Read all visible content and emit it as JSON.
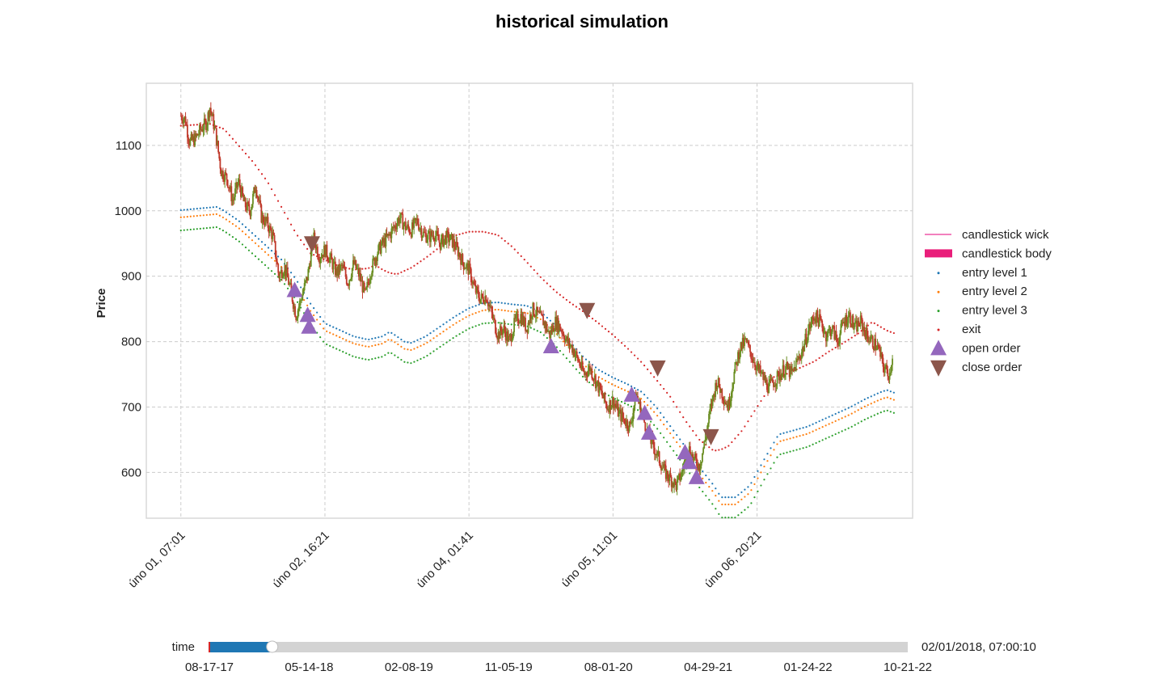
{
  "chart_data": {
    "type": "candlestick",
    "title": "historical simulation",
    "ylabel": "Price",
    "xlabel": "",
    "ylim": [
      530,
      1195
    ],
    "yticks": [
      600,
      700,
      800,
      900,
      1000,
      1100
    ],
    "xticks": [
      {
        "t": 0,
        "label": "úno 01, 07:01"
      },
      {
        "t": 1,
        "label": "úno 02, 16:21"
      },
      {
        "t": 2,
        "label": "úno 04, 01:41"
      },
      {
        "t": 3,
        "label": "úno 05, 11:01"
      },
      {
        "t": 4,
        "label": "úno 06, 20:21"
      }
    ],
    "xlim": [
      -0.24,
      5.08
    ],
    "grid": true,
    "legend_position": "center-right",
    "legend": [
      {
        "key": "wick",
        "label": "candlestick wick",
        "color": "#e6007e"
      },
      {
        "key": "body",
        "label": "candlestick body",
        "color": "#e91e7a"
      },
      {
        "key": "entry1",
        "label": "entry level 1",
        "color": "#1f77b4"
      },
      {
        "key": "entry2",
        "label": "entry level 2",
        "color": "#ff7f0e"
      },
      {
        "key": "entry3",
        "label": "entry level 3",
        "color": "#2ca02c"
      },
      {
        "key": "exit",
        "label": "exit",
        "color": "#d62728"
      },
      {
        "key": "open",
        "label": "open order",
        "color": "#9467bd"
      },
      {
        "key": "close",
        "label": "close order",
        "color": "#8c564b"
      }
    ],
    "candle_colors": {
      "up": "#6b8e23",
      "down": "#c0392b"
    },
    "price": [
      [
        0.0,
        1145
      ],
      [
        0.03,
        1140
      ],
      [
        0.06,
        1105
      ],
      [
        0.1,
        1110
      ],
      [
        0.14,
        1125
      ],
      [
        0.18,
        1135
      ],
      [
        0.2,
        1160
      ],
      [
        0.24,
        1120
      ],
      [
        0.28,
        1060
      ],
      [
        0.32,
        1050
      ],
      [
        0.36,
        1015
      ],
      [
        0.4,
        1045
      ],
      [
        0.44,
        1010
      ],
      [
        0.48,
        1000
      ],
      [
        0.52,
        1040
      ],
      [
        0.56,
        990
      ],
      [
        0.6,
        980
      ],
      [
        0.64,
        960
      ],
      [
        0.68,
        900
      ],
      [
        0.72,
        915
      ],
      [
        0.76,
        880
      ],
      [
        0.8,
        840
      ],
      [
        0.84,
        870
      ],
      [
        0.88,
        900
      ],
      [
        0.92,
        960
      ],
      [
        0.96,
        930
      ],
      [
        1.0,
        940
      ],
      [
        1.04,
        925
      ],
      [
        1.08,
        905
      ],
      [
        1.12,
        915
      ],
      [
        1.16,
        890
      ],
      [
        1.2,
        920
      ],
      [
        1.24,
        900
      ],
      [
        1.28,
        870
      ],
      [
        1.32,
        910
      ],
      [
        1.36,
        935
      ],
      [
        1.4,
        950
      ],
      [
        1.44,
        960
      ],
      [
        1.48,
        975
      ],
      [
        1.52,
        990
      ],
      [
        1.56,
        975
      ],
      [
        1.6,
        970
      ],
      [
        1.64,
        985
      ],
      [
        1.68,
        965
      ],
      [
        1.72,
        960
      ],
      [
        1.76,
        965
      ],
      [
        1.8,
        950
      ],
      [
        1.84,
        960
      ],
      [
        1.88,
        955
      ],
      [
        1.92,
        940
      ],
      [
        1.96,
        920
      ],
      [
        2.0,
        910
      ],
      [
        2.04,
        880
      ],
      [
        2.08,
        865
      ],
      [
        2.12,
        870
      ],
      [
        2.16,
        840
      ],
      [
        2.2,
        810
      ],
      [
        2.24,
        820
      ],
      [
        2.28,
        800
      ],
      [
        2.32,
        830
      ],
      [
        2.36,
        840
      ],
      [
        2.4,
        820
      ],
      [
        2.44,
        850
      ],
      [
        2.48,
        840
      ],
      [
        2.52,
        830
      ],
      [
        2.56,
        810
      ],
      [
        2.6,
        830
      ],
      [
        2.64,
        820
      ],
      [
        2.68,
        800
      ],
      [
        2.72,
        790
      ],
      [
        2.76,
        770
      ],
      [
        2.8,
        750
      ],
      [
        2.84,
        760
      ],
      [
        2.88,
        740
      ],
      [
        2.92,
        720
      ],
      [
        2.96,
        700
      ],
      [
        3.0,
        710
      ],
      [
        3.04,
        690
      ],
      [
        3.08,
        680
      ],
      [
        3.12,
        670
      ],
      [
        3.16,
        720
      ],
      [
        3.2,
        690
      ],
      [
        3.24,
        660
      ],
      [
        3.28,
        640
      ],
      [
        3.32,
        620
      ],
      [
        3.36,
        600
      ],
      [
        3.4,
        590
      ],
      [
        3.44,
        580
      ],
      [
        3.48,
        600
      ],
      [
        3.52,
        640
      ],
      [
        3.56,
        620
      ],
      [
        3.6,
        610
      ],
      [
        3.64,
        650
      ],
      [
        3.68,
        700
      ],
      [
        3.72,
        740
      ],
      [
        3.76,
        720
      ],
      [
        3.8,
        700
      ],
      [
        3.84,
        750
      ],
      [
        3.88,
        790
      ],
      [
        3.92,
        800
      ],
      [
        3.96,
        780
      ],
      [
        4.0,
        760
      ],
      [
        4.04,
        745
      ],
      [
        4.08,
        730
      ],
      [
        4.12,
        740
      ],
      [
        4.16,
        750
      ],
      [
        4.2,
        760
      ],
      [
        4.24,
        750
      ],
      [
        4.28,
        770
      ],
      [
        4.32,
        790
      ],
      [
        4.36,
        820
      ],
      [
        4.4,
        840
      ],
      [
        4.44,
        830
      ],
      [
        4.48,
        810
      ],
      [
        4.52,
        820
      ],
      [
        4.56,
        800
      ],
      [
        4.6,
        830
      ],
      [
        4.64,
        840
      ],
      [
        4.68,
        820
      ],
      [
        4.72,
        830
      ],
      [
        4.76,
        810
      ],
      [
        4.8,
        800
      ],
      [
        4.84,
        790
      ],
      [
        4.88,
        760
      ],
      [
        4.92,
        750
      ],
      [
        4.94,
        780
      ]
    ],
    "exit": [
      [
        0.0,
        1130
      ],
      [
        0.2,
        1133
      ],
      [
        0.3,
        1125
      ],
      [
        0.4,
        1100
      ],
      [
        0.5,
        1075
      ],
      [
        0.6,
        1045
      ],
      [
        0.7,
        1005
      ],
      [
        0.8,
        965
      ],
      [
        0.9,
        935
      ],
      [
        1.0,
        925
      ],
      [
        1.1,
        915
      ],
      [
        1.2,
        910
      ],
      [
        1.3,
        912
      ],
      [
        1.35,
        917
      ],
      [
        1.4,
        910
      ],
      [
        1.45,
        905
      ],
      [
        1.5,
        903
      ],
      [
        1.6,
        913
      ],
      [
        1.7,
        928
      ],
      [
        1.8,
        945
      ],
      [
        1.9,
        962
      ],
      [
        2.0,
        968
      ],
      [
        2.1,
        968
      ],
      [
        2.2,
        963
      ],
      [
        2.3,
        945
      ],
      [
        2.4,
        922
      ],
      [
        2.5,
        898
      ],
      [
        2.6,
        877
      ],
      [
        2.7,
        860
      ],
      [
        2.8,
        845
      ],
      [
        2.9,
        828
      ],
      [
        3.0,
        810
      ],
      [
        3.1,
        790
      ],
      [
        3.2,
        768
      ],
      [
        3.3,
        742
      ],
      [
        3.4,
        715
      ],
      [
        3.5,
        680
      ],
      [
        3.6,
        650
      ],
      [
        3.7,
        633
      ],
      [
        3.75,
        635
      ],
      [
        3.8,
        640
      ],
      [
        3.9,
        665
      ],
      [
        4.0,
        700
      ],
      [
        4.06,
        720
      ],
      [
        4.1,
        745
      ],
      [
        4.2,
        750
      ],
      [
        4.3,
        760
      ],
      [
        4.4,
        770
      ],
      [
        4.5,
        785
      ],
      [
        4.6,
        798
      ],
      [
        4.7,
        812
      ],
      [
        4.8,
        830
      ],
      [
        4.9,
        817
      ],
      [
        4.95,
        813
      ]
    ],
    "entry1": [
      [
        0.0,
        1001
      ],
      [
        0.1,
        1003
      ],
      [
        0.2,
        1005
      ],
      [
        0.25,
        1006
      ],
      [
        0.3,
        1000
      ],
      [
        0.4,
        985
      ],
      [
        0.5,
        965
      ],
      [
        0.6,
        945
      ],
      [
        0.7,
        925
      ],
      [
        0.8,
        895
      ],
      [
        0.9,
        858
      ],
      [
        1.0,
        828
      ],
      [
        1.1,
        818
      ],
      [
        1.2,
        808
      ],
      [
        1.3,
        803
      ],
      [
        1.4,
        808
      ],
      [
        1.45,
        815
      ],
      [
        1.5,
        808
      ],
      [
        1.55,
        800
      ],
      [
        1.6,
        798
      ],
      [
        1.7,
        808
      ],
      [
        1.8,
        823
      ],
      [
        1.9,
        838
      ],
      [
        2.0,
        851
      ],
      [
        2.1,
        859
      ],
      [
        2.2,
        860
      ],
      [
        2.3,
        857
      ],
      [
        2.4,
        855
      ],
      [
        2.5,
        845
      ],
      [
        2.6,
        825
      ],
      [
        2.7,
        800
      ],
      [
        2.8,
        775
      ],
      [
        2.9,
        757
      ],
      [
        3.0,
        745
      ],
      [
        3.1,
        735
      ],
      [
        3.2,
        723
      ],
      [
        3.3,
        700
      ],
      [
        3.4,
        670
      ],
      [
        3.5,
        640
      ],
      [
        3.6,
        608
      ],
      [
        3.7,
        580
      ],
      [
        3.75,
        562
      ],
      [
        3.85,
        562
      ],
      [
        3.95,
        580
      ],
      [
        4.05,
        620
      ],
      [
        4.15,
        658
      ],
      [
        4.25,
        664
      ],
      [
        4.35,
        670
      ],
      [
        4.45,
        680
      ],
      [
        4.55,
        690
      ],
      [
        4.65,
        700
      ],
      [
        4.75,
        712
      ],
      [
        4.85,
        722
      ],
      [
        4.9,
        726
      ],
      [
        4.95,
        722
      ]
    ],
    "orders_open": [
      [
        0.79,
        878
      ],
      [
        0.88,
        840
      ],
      [
        0.89,
        822
      ],
      [
        2.57,
        792
      ],
      [
        3.13,
        718
      ],
      [
        3.22,
        690
      ],
      [
        3.25,
        660
      ],
      [
        3.5,
        630
      ],
      [
        3.53,
        615
      ],
      [
        3.58,
        592
      ]
    ],
    "orders_close": [
      [
        0.91,
        950
      ],
      [
        2.82,
        848
      ],
      [
        3.31,
        760
      ],
      [
        3.68,
        655
      ]
    ]
  },
  "slider": {
    "label": "time",
    "value_text": "02/01/2018, 07:00:10",
    "ticks": [
      "08-17-17",
      "05-14-18",
      "02-08-19",
      "11-05-19",
      "08-01-20",
      "04-29-21",
      "01-24-22",
      "10-21-22"
    ],
    "position": 0.09,
    "fill_color": "#1f77b4",
    "track_color": "#d3d3d3"
  }
}
